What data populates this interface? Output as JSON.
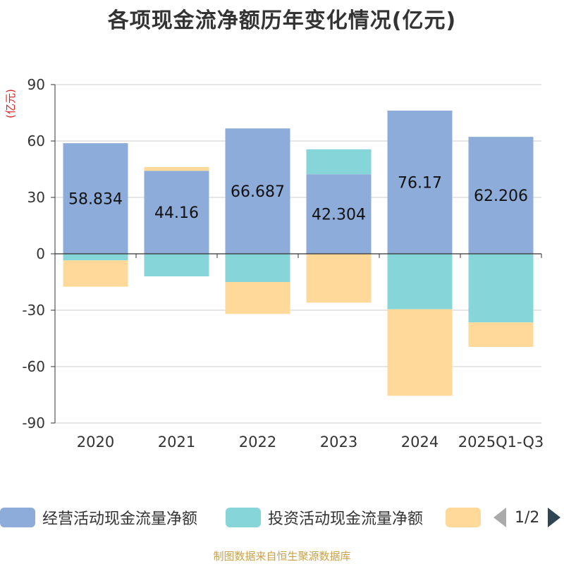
{
  "chart_data": {
    "type": "bar",
    "stacked": true,
    "title": "各项现金流净额历年变化情况(亿元)",
    "ylabel": "(亿元)",
    "xlabel": "",
    "ylim": [
      -90,
      90
    ],
    "yticks": [
      90,
      60,
      30,
      0,
      -30,
      -60,
      -90
    ],
    "categories": [
      "2020",
      "2021",
      "2022",
      "2023",
      "2024",
      "2025Q1-Q3"
    ],
    "series": [
      {
        "name": "经营活动现金流量净额",
        "color": "#8eacd9",
        "values": [
          58.834,
          44.16,
          66.687,
          42.304,
          76.17,
          62.206
        ],
        "show_labels": true
      },
      {
        "name": "投资活动现金流量净额",
        "color": "#86d5d8",
        "values": [
          -3.5,
          -12.0,
          -15.0,
          13.3,
          -29.5,
          -36.5
        ],
        "show_labels": false
      },
      {
        "name": "",
        "color": "#fed99a",
        "values": [
          -14.0,
          2.0,
          -17.0,
          -26.0,
          -46.0,
          -13.0
        ],
        "show_labels": false
      }
    ],
    "gridlines": true,
    "legend_position": "bottom"
  },
  "legend": {
    "pager_text": "1/2"
  },
  "source_note": "制图数据来自恒生聚源数据库"
}
